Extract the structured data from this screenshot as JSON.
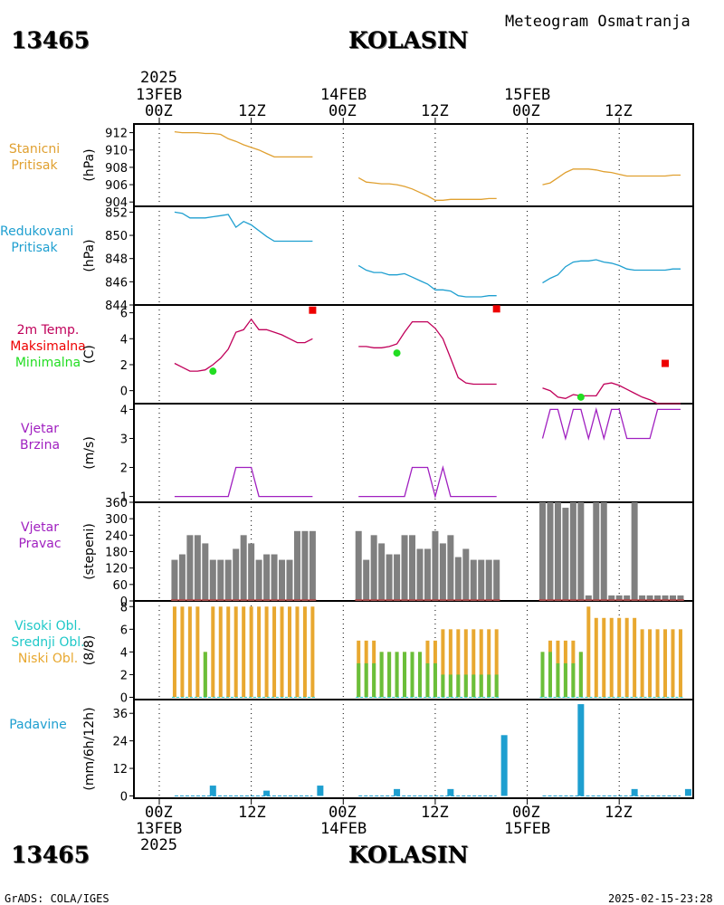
{
  "header": {
    "station_id": "13465",
    "station_name": "KOLASIN",
    "chart_title": "Meteogram Osmatranja"
  },
  "footer": {
    "station_id": "13465",
    "station_name": "KOLASIN",
    "credit": "GrADS: COLA/IGES",
    "timestamp": "2025-02-15-23:28"
  },
  "colors": {
    "pressure": "#e0a030",
    "reduced": "#1e9fd0",
    "temp": "#c0005a",
    "max": "#ee0000",
    "min": "#22dd22",
    "wind": "#a020c0",
    "dir_bar": "#808080",
    "cloud_low": "#e8a830",
    "cloud_mid": "#6abf3a",
    "cloud_high": "#1ec8c8",
    "precip": "#1e9fd0"
  },
  "top_axis": {
    "year": "2025",
    "dates": [
      "13FEB",
      "14FEB",
      "15FEB"
    ],
    "ticks": [
      "00Z",
      "12Z",
      "00Z",
      "12Z",
      "00Z",
      "12Z"
    ]
  },
  "bottom_axis": {
    "year": "2025",
    "dates": [
      "13FEB",
      "14FEB",
      "15FEB"
    ],
    "ticks": [
      "00Z",
      "12Z",
      "00Z",
      "12Z",
      "00Z",
      "12Z"
    ]
  },
  "panel_labels": {
    "p1": [
      "Stanicni",
      "Pritisak"
    ],
    "p1_unit": "(hPa)",
    "p2": [
      "Redukovani",
      "Pritisak"
    ],
    "p2_unit": "(hPa)",
    "p3": [
      "2m Temp.",
      "Maksimalna",
      "Minimalna"
    ],
    "p3_unit": "(C)",
    "p4": [
      "Vjetar",
      "Brzina"
    ],
    "p4_unit": "(m/s)",
    "p5": [
      "Vjetar",
      "Pravac"
    ],
    "p5_unit": "(stepeni)",
    "p6": [
      "Visoki Obl.",
      "Srednji Obl.",
      "Niski Obl."
    ],
    "p6_unit": "(8/8)",
    "p7": [
      "Padavine"
    ],
    "p7_unit": "(mm/6h/12h)"
  },
  "chart_data": [
    {
      "type": "line",
      "name": "Stanicni Pritisak",
      "ylim": [
        903.5,
        913
      ],
      "yticks": [
        904,
        906,
        908,
        910,
        912
      ],
      "xlabel": "time (hours from 13FEB 00Z)",
      "segments": [
        {
          "x": [
            2,
            3,
            4,
            5,
            6,
            7,
            8,
            9,
            10,
            11,
            12,
            13,
            14,
            15,
            16,
            17,
            18,
            19,
            20
          ],
          "y": [
            912.1,
            912.0,
            912.0,
            912.0,
            911.9,
            911.9,
            911.8,
            911.3,
            911.0,
            910.6,
            910.3,
            910.0,
            909.6,
            909.2,
            909.2,
            909.2,
            909.2,
            909.2,
            909.2
          ]
        },
        {
          "x": [
            26,
            27,
            28,
            29,
            30,
            31,
            32,
            33,
            34,
            35,
            36,
            37,
            38,
            39,
            40,
            41,
            42,
            43,
            44
          ],
          "y": [
            906.8,
            906.3,
            906.2,
            906.1,
            906.1,
            906.0,
            905.8,
            905.5,
            905.1,
            904.7,
            904.2,
            904.2,
            904.3,
            904.3,
            904.3,
            904.3,
            904.3,
            904.4,
            904.4
          ]
        },
        {
          "x": [
            50,
            51,
            52,
            53,
            54,
            55,
            56,
            57,
            58,
            59,
            60,
            61,
            62,
            63,
            64,
            65,
            66,
            67,
            68
          ],
          "y": [
            906.0,
            906.2,
            906.8,
            907.4,
            907.8,
            907.8,
            907.8,
            907.7,
            907.5,
            907.4,
            907.2,
            907.0,
            907.0,
            907.0,
            907.0,
            907.0,
            907.0,
            907.1,
            907.1
          ]
        }
      ]
    },
    {
      "type": "line",
      "name": "Redukovani Pritisak",
      "ylim": [
        844,
        852.5
      ],
      "yticks": [
        844,
        846,
        848,
        850,
        852
      ],
      "segments": [
        {
          "x": [
            2,
            3,
            4,
            5,
            6,
            7,
            8,
            9,
            10,
            11,
            12,
            13,
            14,
            15,
            16,
            17,
            18,
            19,
            20
          ],
          "y": [
            852.0,
            851.9,
            851.5,
            851.5,
            851.5,
            851.6,
            851.7,
            851.8,
            850.7,
            851.2,
            850.9,
            850.4,
            849.9,
            849.5,
            849.5,
            849.5,
            849.5,
            849.5,
            849.5
          ]
        },
        {
          "x": [
            26,
            27,
            28,
            29,
            30,
            31,
            32,
            33,
            34,
            35,
            36,
            37,
            38,
            39,
            40,
            41,
            42,
            43,
            44
          ],
          "y": [
            847.4,
            847.0,
            846.8,
            846.8,
            846.6,
            846.6,
            846.7,
            846.4,
            846.1,
            845.8,
            845.3,
            845.3,
            845.2,
            844.8,
            844.7,
            844.7,
            844.7,
            844.8,
            844.8
          ]
        },
        {
          "x": [
            50,
            51,
            52,
            53,
            54,
            55,
            56,
            57,
            58,
            59,
            60,
            61,
            62,
            63,
            64,
            65,
            66,
            67,
            68
          ],
          "y": [
            845.9,
            846.3,
            846.6,
            847.3,
            847.7,
            847.8,
            847.8,
            847.9,
            847.7,
            847.6,
            847.4,
            847.1,
            847.0,
            847.0,
            847.0,
            847.0,
            847.0,
            847.1,
            847.1
          ]
        }
      ]
    },
    {
      "type": "line",
      "name": "2m Temp.",
      "ylim": [
        -1,
        6.6
      ],
      "yticks": [
        0,
        2,
        4,
        6
      ],
      "segments": [
        {
          "x": [
            2,
            3,
            4,
            5,
            6,
            7,
            8,
            9,
            10,
            11,
            12,
            13,
            14,
            15,
            16,
            17,
            18,
            19,
            20
          ],
          "y": [
            2.1,
            1.8,
            1.5,
            1.5,
            1.6,
            2.0,
            2.5,
            3.2,
            4.5,
            4.7,
            5.5,
            4.7,
            4.7,
            4.5,
            4.3,
            4.0,
            3.7,
            3.7,
            4.0
          ]
        },
        {
          "x": [
            26,
            27,
            28,
            29,
            30,
            31,
            32,
            33,
            34,
            35,
            36,
            37,
            38,
            39,
            40,
            41,
            42,
            43,
            44
          ],
          "y": [
            3.4,
            3.4,
            3.3,
            3.3,
            3.4,
            3.6,
            4.5,
            5.3,
            5.3,
            5.3,
            4.8,
            4.0,
            2.5,
            1.0,
            0.6,
            0.5,
            0.5,
            0.5,
            0.5
          ]
        },
        {
          "x": [
            50,
            51,
            52,
            53,
            54,
            55,
            56,
            57,
            58,
            59,
            60,
            61,
            62,
            63,
            64,
            65,
            66,
            67,
            68
          ],
          "y": [
            0.2,
            0.0,
            -0.5,
            -0.6,
            -0.3,
            -0.4,
            -0.4,
            -0.4,
            0.5,
            0.6,
            0.4,
            0.1,
            -0.2,
            -0.5,
            -0.7,
            -1.0,
            -1.0,
            -1.0,
            -1.0
          ]
        }
      ],
      "maxima": {
        "x": [
          20,
          44,
          66
        ],
        "y": [
          6.2,
          6.3,
          2.1
        ]
      },
      "minima": {
        "x": [
          7,
          31,
          55
        ],
        "y": [
          1.5,
          2.9,
          -0.5
        ]
      }
    },
    {
      "type": "line",
      "name": "Vjetar Brzina",
      "ylim": [
        0.8,
        4.2
      ],
      "yticks": [
        1,
        2,
        3,
        4
      ],
      "segments": [
        {
          "x": [
            2,
            3,
            4,
            5,
            6,
            7,
            8,
            9,
            10,
            11,
            12,
            13,
            14,
            15,
            16,
            17,
            18,
            19,
            20
          ],
          "y": [
            1,
            1,
            1,
            1,
            1,
            1,
            1,
            1,
            2,
            2,
            2,
            1,
            1,
            1,
            1,
            1,
            1,
            1,
            1
          ]
        },
        {
          "x": [
            26,
            27,
            28,
            29,
            30,
            31,
            32,
            33,
            34,
            35,
            36,
            37,
            38,
            39,
            40,
            41,
            42,
            43,
            44
          ],
          "y": [
            1,
            1,
            1,
            1,
            1,
            1,
            1,
            2,
            2,
            2,
            1,
            2,
            1,
            1,
            1,
            1,
            1,
            1,
            1
          ]
        },
        {
          "x": [
            50,
            51,
            52,
            53,
            54,
            55,
            56,
            57,
            58,
            59,
            60,
            61,
            62,
            63,
            64,
            65,
            66,
            67,
            68
          ],
          "y": [
            3,
            4,
            4,
            3,
            4,
            4,
            3,
            4,
            3,
            4,
            4,
            3,
            3,
            3,
            3,
            4,
            4,
            4,
            4
          ]
        }
      ]
    },
    {
      "type": "bar",
      "name": "Vjetar Pravac",
      "ylim": [
        0,
        360
      ],
      "yticks": [
        0,
        60,
        120,
        180,
        240,
        300,
        360
      ],
      "x": [
        2,
        3,
        4,
        5,
        6,
        7,
        8,
        9,
        10,
        11,
        12,
        13,
        14,
        15,
        16,
        17,
        18,
        19,
        20,
        26,
        27,
        28,
        29,
        30,
        31,
        32,
        33,
        34,
        35,
        36,
        37,
        38,
        39,
        40,
        41,
        42,
        43,
        44,
        50,
        51,
        52,
        53,
        54,
        55,
        56,
        57,
        58,
        59,
        60,
        61,
        62,
        63,
        64,
        65,
        66,
        67,
        68
      ],
      "values": [
        150,
        170,
        240,
        240,
        210,
        150,
        150,
        150,
        190,
        240,
        210,
        150,
        170,
        170,
        150,
        150,
        255,
        255,
        255,
        255,
        150,
        240,
        210,
        170,
        170,
        240,
        240,
        190,
        190,
        255,
        210,
        240,
        160,
        190,
        150,
        150,
        150,
        150,
        360,
        360,
        360,
        340,
        360,
        360,
        20,
        360,
        360,
        20,
        20,
        20,
        360,
        20,
        20,
        20,
        20,
        20,
        20
      ]
    },
    {
      "type": "bar",
      "name": "Oblaci",
      "ylim": [
        -0.2,
        8.5
      ],
      "yticks": [
        0,
        2,
        4,
        6,
        8
      ],
      "x": [
        2,
        3,
        4,
        5,
        6,
        7,
        8,
        9,
        10,
        11,
        12,
        13,
        14,
        15,
        16,
        17,
        18,
        19,
        20,
        26,
        27,
        28,
        29,
        30,
        31,
        32,
        33,
        34,
        35,
        36,
        37,
        38,
        39,
        40,
        41,
        42,
        43,
        44,
        50,
        51,
        52,
        53,
        54,
        55,
        56,
        57,
        58,
        59,
        60,
        61,
        62,
        63,
        64,
        65,
        66,
        67,
        68
      ],
      "series": [
        {
          "name": "Niski Obl.",
          "values": [
            8,
            8,
            8,
            8,
            4,
            8,
            8,
            8,
            8,
            8,
            8,
            8,
            8,
            8,
            8,
            8,
            8,
            8,
            8,
            5,
            5,
            5,
            4,
            4,
            4,
            4,
            4,
            4,
            5,
            5,
            6,
            6,
            6,
            6,
            6,
            6,
            6,
            6,
            4,
            5,
            5,
            5,
            5,
            4,
            8,
            7,
            7,
            7,
            7,
            7,
            7,
            6,
            6,
            6,
            6,
            6,
            6
          ]
        },
        {
          "name": "Srednji Obl.",
          "values": [
            0,
            0,
            0,
            0,
            4,
            0,
            0,
            0,
            0,
            0,
            0,
            0,
            0,
            0,
            0,
            0,
            0,
            0,
            0,
            3,
            3,
            3,
            4,
            4,
            4,
            4,
            4,
            4,
            3,
            3,
            2,
            2,
            2,
            2,
            2,
            2,
            2,
            2,
            4,
            4,
            3,
            3,
            3,
            4,
            0,
            0,
            0,
            0,
            0,
            0,
            0,
            0,
            0,
            0,
            0,
            0,
            0
          ]
        },
        {
          "name": "Visoki Obl.",
          "values": [
            0,
            0,
            0,
            0,
            0,
            0,
            0,
            0,
            0,
            0,
            0,
            0,
            0,
            0,
            0,
            0,
            0,
            0,
            0,
            0,
            0,
            0,
            0,
            0,
            0,
            0,
            0,
            0,
            0,
            0,
            0,
            0,
            0,
            0,
            0,
            0,
            0,
            0,
            0,
            0,
            0,
            0,
            0,
            0,
            0,
            0,
            0,
            0,
            0,
            0,
            0,
            0,
            0,
            0,
            0,
            0,
            0
          ]
        }
      ]
    },
    {
      "type": "bar",
      "name": "Padavine",
      "ylim": [
        -1,
        42
      ],
      "yticks": [
        0,
        12,
        24,
        36
      ],
      "x": [
        7,
        14,
        21,
        31,
        38,
        45,
        55,
        62,
        69
      ],
      "values": [
        4.5,
        2.3,
        4.5,
        3.0,
        3.0,
        26.5,
        40.0,
        3.0,
        3.0
      ]
    }
  ]
}
